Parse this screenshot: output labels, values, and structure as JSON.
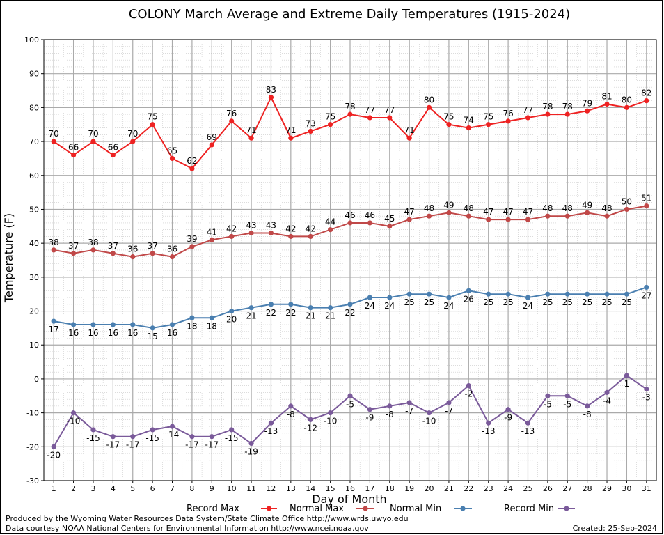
{
  "chart_data": {
    "type": "line",
    "title": "COLONY March Average and Extreme Daily Temperatures (1915-2024)",
    "xlabel": "Day of Month",
    "ylabel": "Temperature (F)",
    "ylim": [
      -30,
      100
    ],
    "yticks": [
      -30,
      -20,
      -10,
      0,
      10,
      20,
      30,
      40,
      50,
      60,
      70,
      80,
      90,
      100
    ],
    "x": [
      1,
      2,
      3,
      4,
      5,
      6,
      7,
      8,
      9,
      10,
      11,
      12,
      13,
      14,
      15,
      16,
      17,
      18,
      19,
      20,
      21,
      22,
      23,
      24,
      25,
      26,
      27,
      28,
      29,
      30,
      31
    ],
    "grid": true,
    "legend_position": "bottom",
    "series": [
      {
        "name": "Record Max",
        "color": "#ee2222",
        "label_position": "above",
        "values": [
          70,
          66,
          70,
          66,
          70,
          75,
          65,
          62,
          69,
          76,
          71,
          83,
          71,
          73,
          75,
          78,
          77,
          77,
          71,
          80,
          75,
          74,
          75,
          76,
          77,
          78,
          78,
          79,
          81,
          80,
          82
        ]
      },
      {
        "name": "Normal Max",
        "color": "#c04848",
        "label_position": "above",
        "values": [
          38,
          37,
          38,
          37,
          36,
          37,
          36,
          39,
          41,
          42,
          43,
          43,
          42,
          42,
          44,
          46,
          46,
          45,
          47,
          48,
          49,
          48,
          47,
          47,
          47,
          48,
          48,
          49,
          48,
          50,
          51
        ]
      },
      {
        "name": "Normal Min",
        "color": "#4a7fb0",
        "label_position": "below",
        "values": [
          17,
          16,
          16,
          16,
          16,
          15,
          16,
          18,
          18,
          20,
          21,
          22,
          22,
          21,
          21,
          22,
          24,
          24,
          25,
          25,
          24,
          26,
          25,
          25,
          24,
          25,
          25,
          25,
          25,
          25,
          27
        ]
      },
      {
        "name": "Record Min",
        "color": "#7a5a9a",
        "label_position": "below",
        "values": [
          -20,
          -10,
          -15,
          -17,
          -17,
          -15,
          -14,
          -17,
          -17,
          -15,
          -19,
          -13,
          -8,
          -12,
          -10,
          -5,
          -9,
          -8,
          -7,
          -10,
          -7,
          -2,
          -13,
          -9,
          -13,
          -5,
          -5,
          -8,
          -4,
          1,
          -3
        ]
      }
    ]
  },
  "footer": {
    "line1": "Produced by the Wyoming Water Resources Data System/State Climate Office http://www.wrds.uwyo.edu",
    "line2": "Data courtesy NOAA National Centers for Environmental Information http://www.ncei.noaa.gov",
    "created": "Created:  25-Sep-2024"
  }
}
